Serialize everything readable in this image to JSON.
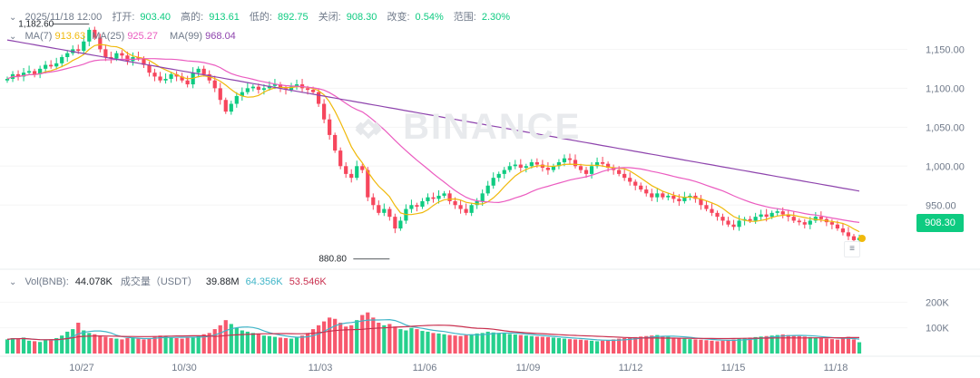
{
  "header": {
    "datetime": "2025/11/18 12:00",
    "open_label": "打开:",
    "open": "903.40",
    "high_label": "高的:",
    "high": "913.61",
    "low_label": "低的:",
    "low": "892.75",
    "close_label": "关闭:",
    "close": "908.30",
    "change_label": "改变:",
    "change": "0.54%",
    "range_label": "范围:",
    "range": "2.30%"
  },
  "ma_legend": {
    "ma7_label": "MA(7)",
    "ma7_value": "913.63",
    "ma25_label": "MA(25)",
    "ma25_value": "925.27",
    "ma99_label": "MA(99)",
    "ma99_value": "968.04"
  },
  "vol_legend": {
    "vol_label": "Vol(BNB):",
    "vol_value": "44.078K",
    "turnover_label": "成交量（USDT）",
    "turnover_value": "39.88M",
    "ma1_value": "64.356K",
    "ma2_value": "53.546K"
  },
  "current_price": "908.30",
  "high_marker": "1,182.60",
  "low_marker": "880.80",
  "watermark": "BINANCE",
  "colors": {
    "up": "#0ecb81",
    "down": "#f6465d",
    "ma7": "#f0b90b",
    "ma25": "#eb5cc0",
    "ma99": "#8e44ad",
    "vol_ma1": "#40b5c8",
    "vol_ma2": "#c9304f"
  },
  "chart_data": {
    "type": "candlestick",
    "x_ticks": [
      "10/27",
      "10/30",
      "11/03",
      "11/06",
      "11/09",
      "11/12",
      "11/15",
      "11/18"
    ],
    "y_ticks": [
      "1,150.00",
      "1,100.00",
      "1,050.00",
      "1,000.00",
      "950.00"
    ],
    "ylim": [
      870,
      1190
    ],
    "vol_ticks": [
      "200K",
      "100K"
    ],
    "vol_ylim": [
      0,
      300
    ],
    "close_series": [
      1112,
      1118,
      1115,
      1120,
      1122,
      1118,
      1125,
      1130,
      1128,
      1132,
      1140,
      1145,
      1150,
      1148,
      1160,
      1175,
      1165,
      1150,
      1140,
      1138,
      1145,
      1142,
      1135,
      1140,
      1138,
      1130,
      1120,
      1115,
      1110,
      1112,
      1118,
      1115,
      1110,
      1105,
      1120,
      1125,
      1118,
      1110,
      1100,
      1085,
      1070,
      1080,
      1090,
      1095,
      1100,
      1102,
      1098,
      1100,
      1103,
      1105,
      1100,
      1098,
      1102,
      1105,
      1100,
      1098,
      1095,
      1080,
      1060,
      1040,
      1020,
      1000,
      990,
      985,
      1000,
      995,
      960,
      950,
      940,
      945,
      935,
      920,
      930,
      945,
      950,
      948,
      955,
      960,
      958,
      962,
      965,
      955,
      950,
      945,
      940,
      950,
      955,
      965,
      975,
      985,
      990,
      995,
      1000,
      1002,
      998,
      1000,
      1005,
      1002,
      998,
      995,
      1000,
      1005,
      1010,
      1008,
      1000,
      995,
      990,
      1000,
      1005,
      1003,
      998,
      995,
      990,
      985,
      980,
      975,
      970,
      965,
      960,
      965,
      960,
      962,
      958,
      955,
      960,
      962,
      958,
      950,
      945,
      940,
      935,
      930,
      925,
      922,
      930,
      932,
      930,
      935,
      938,
      935,
      940,
      942,
      938,
      935,
      930,
      928,
      925,
      930,
      935,
      932,
      928,
      925,
      920,
      915,
      910,
      905,
      908
    ],
    "volumes": [
      55,
      60,
      58,
      62,
      50,
      48,
      45,
      52,
      55,
      60,
      70,
      85,
      95,
      120,
      90,
      80,
      75,
      70,
      65,
      60,
      58,
      55,
      60,
      62,
      58,
      55,
      60,
      65,
      70,
      68,
      62,
      60,
      58,
      62,
      65,
      70,
      75,
      80,
      95,
      110,
      130,
      115,
      100,
      90,
      85,
      80,
      75,
      70,
      68,
      65,
      62,
      60,
      58,
      62,
      70,
      80,
      95,
      110,
      125,
      140,
      135,
      120,
      105,
      110,
      130,
      150,
      160,
      140,
      120,
      110,
      115,
      105,
      95,
      90,
      100,
      95,
      88,
      85,
      80,
      78,
      75,
      72,
      70,
      68,
      72,
      75,
      78,
      80,
      85,
      82,
      80,
      78,
      76,
      74,
      72,
      70,
      68,
      66,
      65,
      64,
      62,
      60,
      58,
      56,
      55,
      54,
      52,
      50,
      48,
      50,
      52,
      55,
      58,
      60,
      62,
      64,
      66,
      68,
      70,
      72,
      68,
      65,
      62,
      60,
      58,
      56,
      55,
      54,
      52,
      50,
      48,
      50,
      52,
      55,
      58,
      60,
      62,
      64,
      66,
      68,
      70,
      72,
      74,
      72,
      70,
      68,
      66,
      64,
      62,
      60,
      58,
      56,
      54,
      60,
      65,
      55,
      44
    ]
  }
}
